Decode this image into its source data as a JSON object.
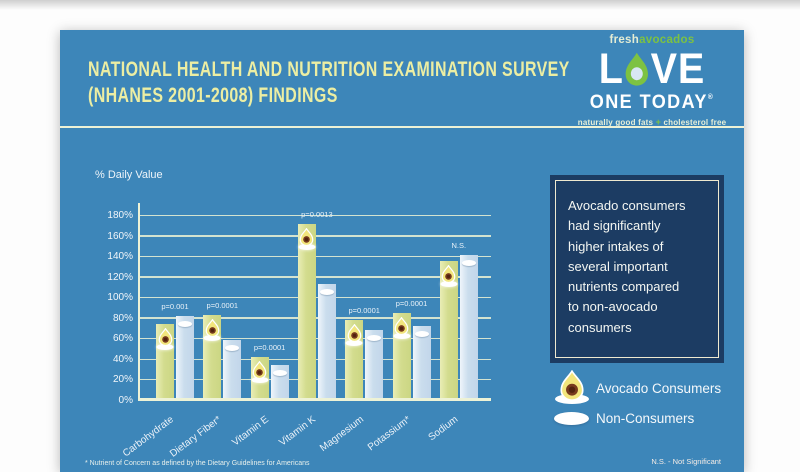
{
  "header": {
    "title_line1": "NATIONAL HEALTH AND NUTRITION EXAMINATION SURVEY",
    "title_line2": "(NHANES 2001-2008) FINDINGS"
  },
  "logo": {
    "brand_light": "fresh",
    "brand_green": "avocados",
    "love_l": "L",
    "love_ve": "VE",
    "line2": "ONE TODAY",
    "registered": "®",
    "tagline_left": "naturally good fats",
    "tagline_plus": "+",
    "tagline_right": "cholesterol free"
  },
  "chart_data": {
    "type": "bar",
    "title": "",
    "ylabel": "% Daily Value",
    "xlabel": "",
    "ylim": [
      0,
      180
    ],
    "ytick_step": 20,
    "ytick_labels": [
      "0%",
      "20%",
      "40%",
      "60%",
      "80%",
      "100%",
      "120%",
      "140%",
      "160%",
      "180%"
    ],
    "grid": true,
    "legend_position": "right",
    "categories": [
      "Carbohydrate",
      "Dietary Fiber*",
      "Vitamin E",
      "Vitamin K",
      "Magnesium",
      "Potassium*",
      "Sodium"
    ],
    "series": [
      {
        "name": "Avocado Consumers",
        "values": [
          75,
          84,
          43,
          172,
          79,
          86,
          136
        ]
      },
      {
        "name": "Non-Consumers",
        "values": [
          83,
          59,
          35,
          114,
          69,
          73,
          142
        ]
      }
    ],
    "significance_labels": [
      "p=0.001",
      "p=0.0001",
      "p=0.0001",
      "p=0.0013",
      "p=0.0001",
      "p=0.0001",
      "N.S."
    ]
  },
  "callout": {
    "text": "Avocado consumers\nhad significantly\nhigher intakes of\nseveral important\nnutrients compared\nto non-avocado\nconsumers"
  },
  "legend": {
    "consumers": "Avocado Consumers",
    "non_consumers": "Non-Consumers"
  },
  "footnotes": {
    "nutrient": "* Nutrient of Concern as defined by the Dietary Guidelines for Americans",
    "ns": "N.S. - Not Significant"
  },
  "icons": {
    "consumer_marker": "avocado-half-icon",
    "non_consumer_marker": "white-oval-icon"
  },
  "colors": {
    "card_blue": "#3d86b9",
    "title_yellow": "#eceea3",
    "bar_green": "#d3dc8e",
    "bar_blue": "#cadded",
    "gridline_cream": "#edf2d6",
    "callout_navy": "#1c3c63",
    "logo_green": "#7dc242",
    "avocado_flesh": "#f2e57c",
    "avocado_pit": "#773a1d"
  }
}
